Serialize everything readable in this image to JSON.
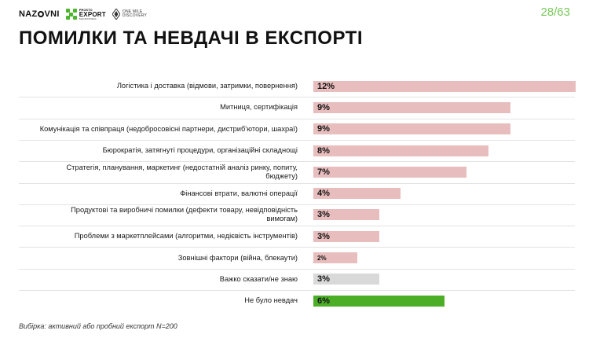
{
  "header": {
    "logo_nazovni": [
      "NAZ",
      "VNI"
    ],
    "logo_export": {
      "line1": "PROSTO",
      "line2": "EXPORT",
      "line3": "ВІД NESTREDA"
    },
    "logo_discovery": {
      "line1": "ONE MILE",
      "line2": "DISCOVERY"
    },
    "page_number": "28/63"
  },
  "title": "ПОМИЛКИ ТА НЕВДАЧІ В ЕКСПОРТІ",
  "footnote": "Вибірка: активний або пробний експорт N=200",
  "colors": {
    "bar_default": "#e8bdbd",
    "bar_neutral": "#d9d9d9",
    "bar_positive": "#4cae27",
    "page_number": "#7bc95c"
  },
  "chart_data": {
    "type": "bar",
    "orientation": "horizontal",
    "categories": [
      "Логістика і доставка (відмови, затримки, повернення)",
      "Митниця, сертифікація",
      "Комунікація та співпраця (недобросовісні партнери, дистриб'ютори, шахраї)",
      "Бюрократія, затягнуті процедури, організаційні складнощі",
      "Стратегія, планування, маркетинг (недостатній аналіз ринку, попиту, бюджету)",
      "Фінансові втрати, валютні операції",
      "Продуктові та виробничі помилки (дефекти товару, невідповідність вимогам)",
      "Проблеми з маркетплейсами (алгоритми, недієвість інструментів)",
      "Зовнішні фактори (війна, блекаути)",
      "Важко сказати/не знаю",
      "Не було невдач"
    ],
    "values": [
      12,
      9,
      9,
      8,
      7,
      4,
      3,
      3,
      2,
      3,
      6
    ],
    "labels": [
      "12%",
      "9%",
      "9%",
      "8%",
      "7%",
      "4%",
      "3%",
      "3%",
      "2%",
      "3%",
      "6%"
    ],
    "label_sizes": [
      "normal",
      "normal",
      "normal",
      "normal",
      "normal",
      "normal",
      "normal",
      "normal",
      "small",
      "normal",
      "normal"
    ],
    "bar_colors": [
      "#e8bdbd",
      "#e8bdbd",
      "#e8bdbd",
      "#e8bdbd",
      "#e8bdbd",
      "#e8bdbd",
      "#e8bdbd",
      "#e8bdbd",
      "#e8bdbd",
      "#d9d9d9",
      "#4cae27"
    ],
    "xlim": [
      0,
      12
    ],
    "grid": false,
    "legend": false
  }
}
